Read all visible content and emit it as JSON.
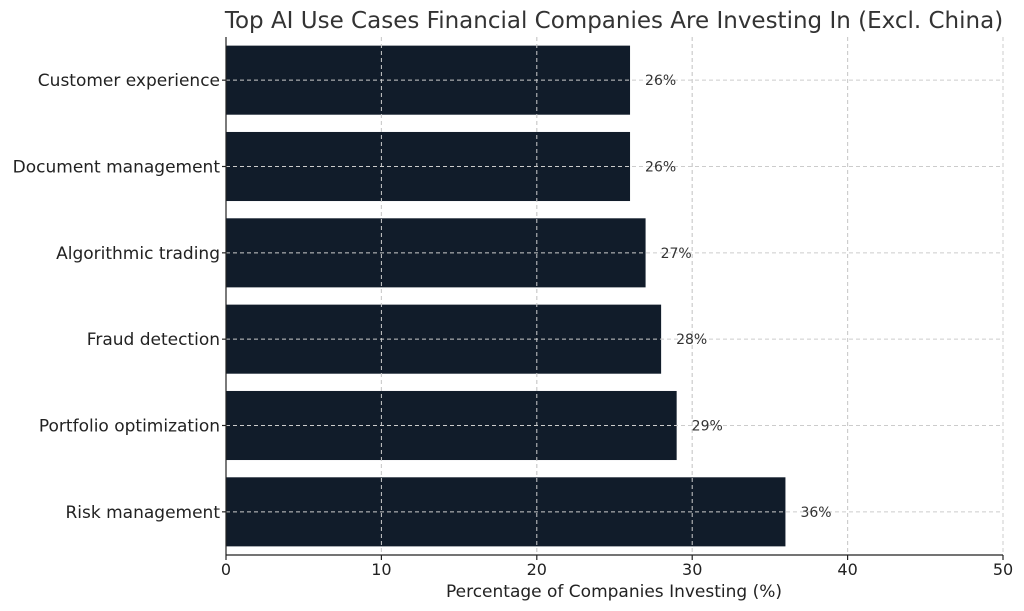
{
  "chart_data": {
    "type": "bar",
    "orientation": "horizontal",
    "title": "Top AI Use Cases Financial Companies Are Investing In (Excl. China)",
    "xlabel": "Percentage of Companies Investing (%)",
    "ylabel": "",
    "categories": [
      "Customer experience",
      "Document management",
      "Algorithmic trading",
      "Fraud detection",
      "Portfolio optimization",
      "Risk management"
    ],
    "values": [
      26,
      26,
      27,
      28,
      29,
      36
    ],
    "data_labels": [
      "26%",
      "26%",
      "27%",
      "28%",
      "29%",
      "36%"
    ],
    "xlim": [
      0,
      50
    ],
    "xticks": [
      0,
      10,
      20,
      30,
      40,
      50
    ],
    "xtick_labels": [
      "0",
      "10",
      "20",
      "30",
      "40",
      "50"
    ],
    "grid": true,
    "bar_color": "#111c2a",
    "grid_color": "#cccccc"
  }
}
